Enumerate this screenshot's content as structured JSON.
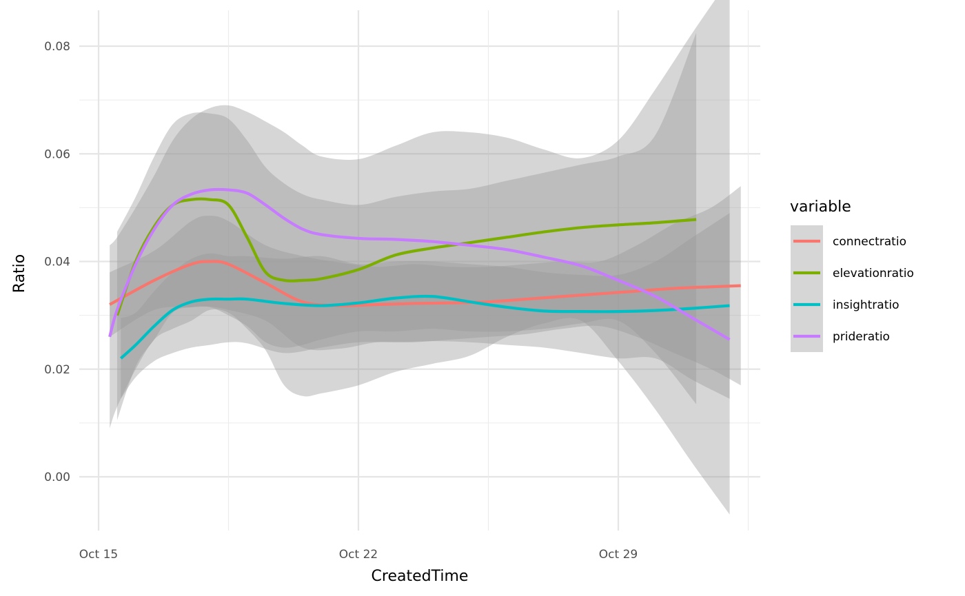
{
  "chart_data": {
    "type": "line",
    "title": "",
    "xlabel": "CreatedTime",
    "ylabel": "Ratio",
    "x_ticks": [
      "Oct 15",
      "Oct 22",
      "Oct 29"
    ],
    "x_tick_days": [
      15,
      22,
      29
    ],
    "xlim": [
      14.9,
      32.6
    ],
    "ylim": [
      -0.01,
      0.0875
    ],
    "y_ticks": [
      "0.00",
      "0.02",
      "0.04",
      "0.06",
      "0.08"
    ],
    "y_tick_values": [
      0.0,
      0.02,
      0.04,
      0.06,
      0.08
    ],
    "grid": true,
    "legend": {
      "title": "variable",
      "position": "right"
    },
    "series": [
      {
        "name": "connectratio",
        "color": "#F8766D",
        "x": [
          15.3,
          16.5,
          17.5,
          18.0,
          18.5,
          19.5,
          20.5,
          21.5,
          22.5,
          23.5,
          24.5,
          25.5,
          26.5,
          27.5,
          28.5,
          29.5,
          30.5,
          31.5,
          32.3
        ],
        "y": [
          0.032,
          0.0365,
          0.0395,
          0.04,
          0.0395,
          0.036,
          0.0325,
          0.0318,
          0.032,
          0.0322,
          0.0323,
          0.0325,
          0.033,
          0.0335,
          0.034,
          0.0345,
          0.035,
          0.0353,
          0.0355
        ],
        "lower": [
          0.026,
          0.031,
          0.0315,
          0.0316,
          0.031,
          0.029,
          0.024,
          0.0238,
          0.025,
          0.025,
          0.0255,
          0.026,
          0.0265,
          0.0275,
          0.028,
          0.026,
          0.023,
          0.02,
          0.017
        ],
        "upper": [
          0.038,
          0.042,
          0.0475,
          0.0485,
          0.0475,
          0.043,
          0.041,
          0.0398,
          0.039,
          0.0395,
          0.039,
          0.039,
          0.0395,
          0.04,
          0.04,
          0.043,
          0.047,
          0.05,
          0.054
        ]
      },
      {
        "name": "elevationratio",
        "color": "#7CAE00",
        "x": [
          15.5,
          16.0,
          16.5,
          17.0,
          17.5,
          18.0,
          18.5,
          19.0,
          19.5,
          20.0,
          20.5,
          21.0,
          22.0,
          23.0,
          24.0,
          25.0,
          26.0,
          27.0,
          28.0,
          29.0,
          30.0,
          31.1
        ],
        "y": [
          0.03,
          0.04,
          0.0465,
          0.0505,
          0.0515,
          0.0515,
          0.0505,
          0.0445,
          0.038,
          0.0365,
          0.0365,
          0.0368,
          0.0385,
          0.0412,
          0.0425,
          0.0435,
          0.0445,
          0.0455,
          0.0463,
          0.0468,
          0.0472,
          0.0478
        ],
        "lower": [
          0.0105,
          0.0205,
          0.0255,
          0.0305,
          0.0315,
          0.0315,
          0.03,
          0.028,
          0.025,
          0.024,
          0.0245,
          0.0255,
          0.027,
          0.027,
          0.0275,
          0.027,
          0.027,
          0.0275,
          0.0285,
          0.029,
          0.023,
          0.0135
        ],
        "upper": [
          0.0455,
          0.052,
          0.0595,
          0.0655,
          0.0675,
          0.0675,
          0.0665,
          0.0625,
          0.0575,
          0.0545,
          0.0525,
          0.0515,
          0.0505,
          0.052,
          0.053,
          0.0535,
          0.055,
          0.0565,
          0.058,
          0.0595,
          0.0635,
          0.0825
        ]
      },
      {
        "name": "insightratio",
        "color": "#00BFC4",
        "x": [
          15.6,
          16.0,
          16.5,
          17.0,
          17.5,
          18.0,
          18.5,
          19.0,
          20.0,
          21.0,
          22.0,
          23.0,
          24.0,
          25.0,
          26.0,
          27.0,
          28.0,
          29.0,
          30.0,
          31.0,
          32.0
        ],
        "y": [
          0.022,
          0.0245,
          0.028,
          0.031,
          0.0325,
          0.033,
          0.033,
          0.033,
          0.0322,
          0.0318,
          0.0323,
          0.0332,
          0.0335,
          0.0325,
          0.0315,
          0.0308,
          0.0307,
          0.0307,
          0.0309,
          0.0313,
          0.0318
        ],
        "lower": [
          0.0145,
          0.0185,
          0.0215,
          0.023,
          0.024,
          0.0245,
          0.025,
          0.0248,
          0.023,
          0.024,
          0.025,
          0.025,
          0.0252,
          0.025,
          0.0245,
          0.024,
          0.023,
          0.022,
          0.022,
          0.018,
          0.0145
        ],
        "upper": [
          0.0295,
          0.0305,
          0.0345,
          0.038,
          0.0405,
          0.0415,
          0.041,
          0.041,
          0.0405,
          0.041,
          0.0395,
          0.04,
          0.04,
          0.0395,
          0.039,
          0.038,
          0.0375,
          0.0375,
          0.04,
          0.0445,
          0.049
        ]
      },
      {
        "name": "prideratio",
        "color": "#C77CFF",
        "x": [
          15.3,
          15.5,
          16.0,
          16.5,
          17.0,
          17.5,
          18.0,
          18.5,
          19.0,
          19.5,
          20.0,
          20.5,
          21.0,
          22.0,
          23.0,
          24.0,
          25.0,
          26.0,
          27.0,
          28.0,
          29.0,
          30.0,
          31.0,
          32.0
        ],
        "y": [
          0.026,
          0.031,
          0.0395,
          0.046,
          0.0505,
          0.0525,
          0.0533,
          0.0533,
          0.0527,
          0.0505,
          0.048,
          0.046,
          0.045,
          0.0443,
          0.0441,
          0.0437,
          0.043,
          0.0422,
          0.0408,
          0.0392,
          0.0365,
          0.0335,
          0.0295,
          0.0255
        ],
        "lower": [
          0.009,
          0.013,
          0.02,
          0.0255,
          0.0275,
          0.029,
          0.031,
          0.0305,
          0.0275,
          0.0235,
          0.017,
          0.015,
          0.0155,
          0.017,
          0.0195,
          0.021,
          0.0225,
          0.026,
          0.0285,
          0.029,
          0.0215,
          0.0125,
          0.0025,
          -0.007
        ],
        "upper": [
          0.043,
          0.0445,
          0.05,
          0.056,
          0.0625,
          0.0665,
          0.0685,
          0.069,
          0.0678,
          0.066,
          0.064,
          0.0615,
          0.0595,
          0.059,
          0.0615,
          0.064,
          0.064,
          0.063,
          0.0608,
          0.0592,
          0.0625,
          0.072,
          0.0825,
          0.0925
        ]
      }
    ]
  }
}
